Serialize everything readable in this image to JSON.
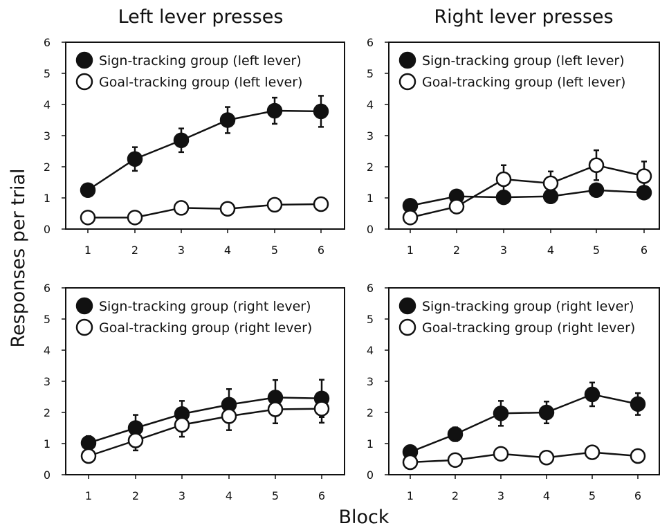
{
  "figure": {
    "column_titles": [
      "Left lever presses",
      "Right lever presses"
    ],
    "ylabel": "Responses per trial",
    "xlabel": "Block"
  },
  "chart_data": [
    {
      "type": "line",
      "panel": "top-left",
      "x": [
        1,
        2,
        3,
        4,
        5,
        6
      ],
      "ylim": [
        0,
        6
      ],
      "yticks": [
        0,
        1,
        2,
        3,
        4,
        5,
        6
      ],
      "legend_placement": "top-left",
      "series": [
        {
          "name": "Sign-tracking group (left lever)",
          "marker": "filled",
          "values": [
            1.25,
            2.25,
            2.85,
            3.5,
            3.8,
            3.78
          ],
          "error": [
            0.2,
            0.38,
            0.38,
            0.42,
            0.42,
            0.5
          ]
        },
        {
          "name": "Goal-tracking group (left lever)",
          "marker": "open",
          "values": [
            0.37,
            0.37,
            0.68,
            0.65,
            0.78,
            0.8
          ],
          "error": [
            0.05,
            0.05,
            0.08,
            0.08,
            0.1,
            0.1
          ]
        }
      ]
    },
    {
      "type": "line",
      "panel": "top-right",
      "x": [
        1,
        2,
        3,
        4,
        5,
        6
      ],
      "ylim": [
        0,
        6
      ],
      "yticks": [
        0,
        1,
        2,
        3,
        4,
        5,
        6
      ],
      "legend_placement": "top-left",
      "series": [
        {
          "name": "Sign-tracking group (left lever)",
          "marker": "filled",
          "values": [
            0.75,
            1.05,
            1.02,
            1.05,
            1.25,
            1.17
          ],
          "error": [
            0.1,
            0.12,
            0.12,
            0.12,
            0.15,
            0.15
          ]
        },
        {
          "name": "Goal-tracking group (left lever)",
          "marker": "open",
          "values": [
            0.37,
            0.72,
            1.6,
            1.47,
            2.05,
            1.7
          ],
          "error": [
            0.08,
            0.12,
            0.45,
            0.38,
            0.48,
            0.47
          ]
        }
      ]
    },
    {
      "type": "line",
      "panel": "bottom-left",
      "x": [
        1,
        2,
        3,
        4,
        5,
        6
      ],
      "ylim": [
        0,
        6
      ],
      "yticks": [
        0,
        1,
        2,
        3,
        4,
        5,
        6
      ],
      "legend_placement": "top-left",
      "series": [
        {
          "name": "Sign-tracking group (right lever)",
          "marker": "filled",
          "values": [
            1.02,
            1.5,
            1.95,
            2.25,
            2.48,
            2.45
          ],
          "error": [
            0.22,
            0.42,
            0.42,
            0.5,
            0.56,
            0.6
          ]
        },
        {
          "name": "Goal-tracking group (right lever)",
          "marker": "open",
          "values": [
            0.6,
            1.1,
            1.6,
            1.88,
            2.1,
            2.12
          ],
          "error": [
            0.2,
            0.32,
            0.38,
            0.45,
            0.45,
            0.45
          ]
        }
      ]
    },
    {
      "type": "line",
      "panel": "bottom-right",
      "x": [
        1,
        2,
        3,
        4,
        5,
        6
      ],
      "ylim": [
        0,
        6
      ],
      "yticks": [
        0,
        1,
        2,
        3,
        4,
        5,
        6
      ],
      "legend_placement": "top-left",
      "series": [
        {
          "name": "Sign-tracking group (right lever)",
          "marker": "filled",
          "values": [
            0.73,
            1.3,
            1.97,
            2.0,
            2.58,
            2.27
          ],
          "error": [
            0.1,
            0.22,
            0.4,
            0.35,
            0.38,
            0.35
          ]
        },
        {
          "name": "Goal-tracking group (right lever)",
          "marker": "open",
          "values": [
            0.4,
            0.47,
            0.67,
            0.55,
            0.72,
            0.6
          ],
          "error": [
            0.05,
            0.06,
            0.08,
            0.08,
            0.1,
            0.08
          ]
        }
      ]
    }
  ]
}
